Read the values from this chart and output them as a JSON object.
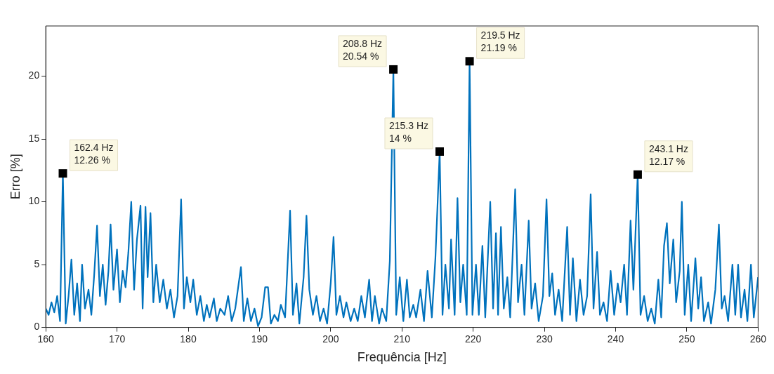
{
  "chart_data": {
    "type": "line",
    "xlabel": "Frequência [Hz]",
    "ylabel": "Erro [%]",
    "xlim": [
      160,
      260
    ],
    "xticks": [
      160,
      170,
      180,
      190,
      200,
      210,
      220,
      230,
      240,
      250,
      260
    ],
    "ylim": [
      0,
      24
    ],
    "yticks": [
      0,
      5,
      10,
      15,
      20
    ],
    "grid": false,
    "legend": false,
    "marker": "none",
    "line_style": "solid",
    "annotations": [
      {
        "text": "162.4 Hz\n12.26 %",
        "x": 162.4,
        "y": 12.26
      },
      {
        "text": "208.8 Hz\n20.54 %",
        "x": 208.8,
        "y": 20.54
      },
      {
        "text": "215.3 Hz\n14 %",
        "x": 215.3,
        "y": 14
      },
      {
        "text": "219.5 Hz\n21.19 %",
        "x": 219.5,
        "y": 21.19
      },
      {
        "text": "243.1 Hz\n12.17 %",
        "x": 243.1,
        "y": 12.17
      }
    ],
    "series": [
      {
        "color": "#0072bd",
        "x": [
          160,
          160.4,
          160.8,
          161.2,
          161.6,
          162,
          162.4,
          162.8,
          163.2,
          163.6,
          164,
          164.4,
          164.8,
          165.1,
          165.5,
          166,
          166.4,
          166.8,
          167.2,
          167.6,
          168,
          168.4,
          168.8,
          169.1,
          169.5,
          170,
          170.4,
          170.8,
          171.2,
          171.6,
          172,
          172.4,
          172.8,
          173.3,
          173.6,
          174,
          174.3,
          174.7,
          175.1,
          175.5,
          176,
          176.5,
          177,
          177.5,
          178,
          178.5,
          179,
          179.4,
          179.8,
          180.3,
          180.7,
          181.2,
          181.7,
          182.2,
          182.6,
          183,
          183.6,
          184,
          184.5,
          185.1,
          185.6,
          186.1,
          186.6,
          187.4,
          187.8,
          188.3,
          188.8,
          189.3,
          189.8,
          190.3,
          190.8,
          191.2,
          191.6,
          192.1,
          192.6,
          193,
          193.6,
          194.3,
          194.7,
          195.2,
          195.6,
          196.2,
          196.6,
          197,
          197.5,
          198,
          198.5,
          199,
          199.5,
          200,
          200.4,
          200.8,
          201.3,
          201.8,
          202.2,
          202.8,
          203.3,
          203.8,
          204.3,
          204.8,
          205.4,
          205.8,
          206.2,
          206.8,
          207.2,
          207.8,
          208.3,
          208.8,
          209.2,
          209.7,
          210.2,
          210.7,
          211.1,
          211.6,
          212,
          212.6,
          213.1,
          213.6,
          214.2,
          214.7,
          215.3,
          215.7,
          216.1,
          216.6,
          216.9,
          217.4,
          217.8,
          218.2,
          218.6,
          219.1,
          219.5,
          219.9,
          220.4,
          220.8,
          221.3,
          221.7,
          222.4,
          222.8,
          223.2,
          223.5,
          223.9,
          224.3,
          224.8,
          225.2,
          225.9,
          226.3,
          226.8,
          227.2,
          227.8,
          228.2,
          228.7,
          229.2,
          229.8,
          230.3,
          230.7,
          231.1,
          231.5,
          232,
          232.5,
          233.2,
          233.6,
          234,
          234.5,
          235,
          235.5,
          236,
          236.5,
          236.9,
          237.4,
          237.8,
          238.3,
          238.8,
          239.3,
          239.8,
          240.3,
          240.7,
          241.2,
          241.6,
          242.1,
          242.5,
          243.1,
          243.5,
          244,
          244.5,
          245,
          245.5,
          246,
          246.4,
          246.8,
          247.2,
          247.6,
          248.1,
          248.5,
          249,
          249.3,
          249.7,
          250.2,
          250.6,
          251.2,
          251.6,
          252,
          252.4,
          253,
          253.4,
          254,
          254.5,
          254.9,
          255.3,
          255.8,
          256.4,
          256.8,
          257.2,
          257.6,
          258.1,
          258.5,
          259,
          259.4,
          260
        ],
        "values": [
          1.5,
          1.0,
          2.0,
          1.2,
          2.5,
          0.5,
          12.26,
          0.3,
          2.5,
          5.4,
          1.0,
          3.5,
          0.5,
          5.0,
          1.5,
          3.0,
          1.0,
          4.2,
          8.1,
          2.5,
          5.0,
          1.8,
          4.5,
          8.2,
          3.0,
          6.2,
          2.0,
          4.5,
          3.2,
          6.0,
          10.0,
          3.0,
          7.0,
          9.7,
          1.5,
          9.6,
          4.0,
          9.1,
          2.0,
          5.0,
          2.0,
          3.8,
          1.5,
          3.0,
          0.8,
          2.5,
          10.2,
          1.5,
          4.0,
          2.0,
          3.8,
          1.0,
          2.5,
          0.5,
          1.8,
          0.8,
          2.3,
          0.5,
          1.5,
          1.0,
          2.5,
          0.5,
          1.5,
          4.8,
          0.5,
          2.3,
          0.5,
          1.5,
          0.1,
          0.8,
          3.2,
          3.2,
          0.3,
          1.0,
          0.5,
          1.8,
          0.8,
          9.3,
          1.0,
          3.5,
          0.3,
          4.0,
          8.9,
          3.0,
          1.0,
          2.5,
          0.5,
          1.5,
          0.3,
          3.5,
          7.2,
          1.0,
          2.5,
          0.8,
          2.0,
          0.5,
          1.5,
          0.5,
          2.5,
          0.8,
          3.8,
          0.5,
          2.5,
          0.3,
          1.5,
          0.5,
          5.3,
          20.54,
          1.0,
          4.0,
          0.5,
          3.8,
          0.8,
          1.8,
          0.8,
          3.0,
          0.5,
          4.5,
          0.8,
          5.5,
          14.0,
          1.0,
          5.0,
          1.5,
          7.0,
          1.0,
          10.3,
          2.0,
          5.0,
          1.0,
          21.19,
          1.0,
          5.0,
          1.0,
          6.5,
          0.8,
          10.0,
          1.5,
          7.5,
          1.0,
          8.0,
          1.5,
          4.0,
          0.8,
          11.0,
          2.0,
          5.0,
          1.0,
          8.5,
          1.5,
          3.5,
          0.5,
          2.5,
          10.2,
          2.5,
          4.3,
          1.0,
          3.0,
          0.5,
          8.0,
          1.0,
          5.5,
          0.5,
          3.8,
          1.0,
          2.5,
          10.6,
          1.5,
          6.0,
          1.0,
          2.0,
          0.5,
          4.5,
          1.0,
          3.5,
          2.0,
          5.0,
          1.0,
          8.5,
          3.0,
          12.17,
          1.0,
          2.5,
          0.5,
          1.5,
          0.3,
          3.8,
          0.8,
          6.5,
          8.3,
          3.5,
          7.0,
          2.0,
          4.5,
          10.0,
          1.0,
          5.0,
          0.5,
          5.5,
          1.5,
          4.0,
          0.5,
          2.0,
          0.3,
          3.0,
          8.2,
          1.5,
          2.5,
          0.5,
          5.0,
          1.0,
          5.0,
          0.8,
          3.0,
          0.5,
          5.0,
          0.8,
          4.0
        ]
      }
    ]
  }
}
